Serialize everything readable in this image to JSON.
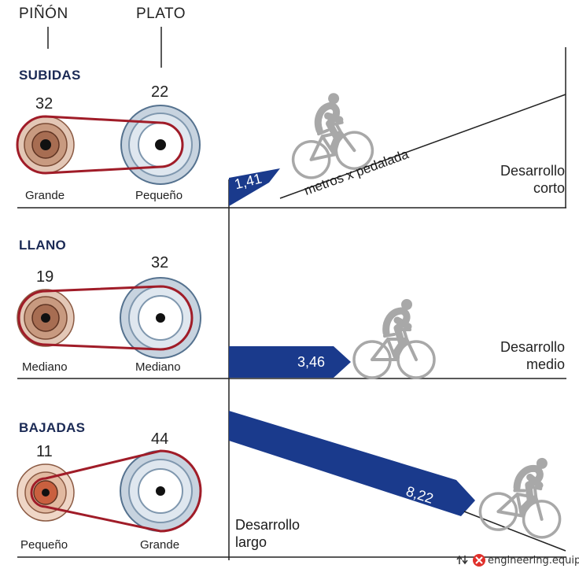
{
  "headers": {
    "pinon": "PIÑÓN",
    "plato": "PLATO"
  },
  "sections": [
    {
      "id": "subidas",
      "title": "SUBIDAS",
      "pinon_teeth": "32",
      "plato_teeth": "22",
      "pinon_size": "Grande",
      "plato_size": "Pequeño",
      "value": "1,41",
      "desarrollo": [
        "Desarrollo",
        "corto"
      ]
    },
    {
      "id": "llano",
      "title": "LLANO",
      "pinon_teeth": "19",
      "plato_teeth": "32",
      "pinon_size": "Mediano",
      "plato_size": "Mediano",
      "value": "3,46",
      "desarrollo": [
        "Desarrollo",
        "medio"
      ]
    },
    {
      "id": "bajadas",
      "title": "BAJADAS",
      "pinon_teeth": "11",
      "plato_teeth": "44",
      "pinon_size": "Pequeño",
      "plato_size": "Grande",
      "value": "8,22",
      "desarrollo": [
        "Desarrollo",
        "largo"
      ]
    }
  ],
  "slope_label": "metros x pedalada",
  "credit": {
    "text": "engineering.equip",
    "repost_icon": "repost-icon",
    "logo_icon": "engineering-logo-icon"
  },
  "colors": {
    "arrow": "#1a3a8c",
    "chain": "#a01c28",
    "bike": "#a8a8a8",
    "line": "#222222",
    "plato_ring": "#9fb2c6",
    "pinon_ring": "#b9856a"
  }
}
